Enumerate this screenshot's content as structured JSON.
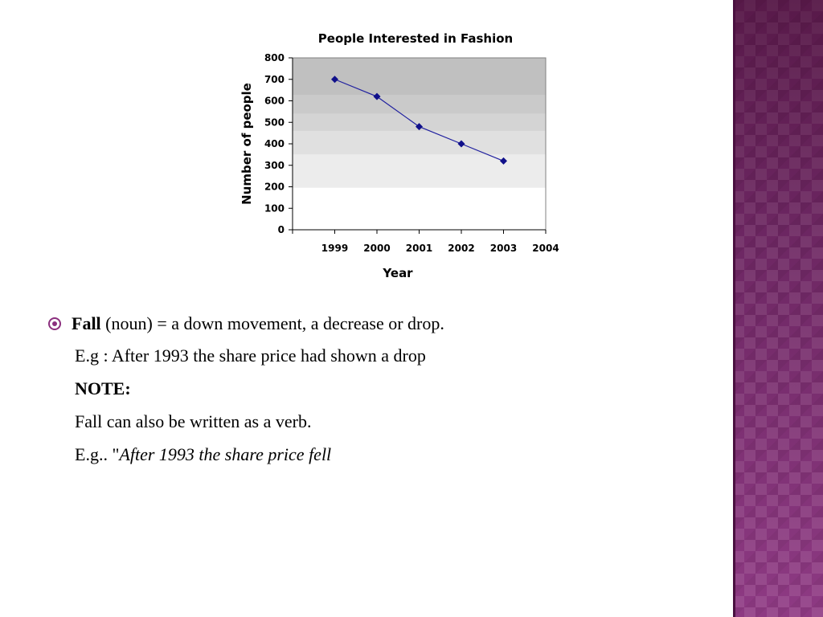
{
  "slide": {
    "bullet": {
      "term": "Fall",
      "definition": " (noun) = a down movement, a decrease or drop."
    },
    "example1": "E.g : After 1993 the share price had shown a drop",
    "note_label": "NOTE:",
    "note_text": "Fall can also be written as a verb.",
    "example2_prefix": "E.g.. \"",
    "example2_italic": "After 1993 the share price fell"
  },
  "colors": {
    "accent": "#8b2f7e",
    "series_line": "#1f1f9f",
    "side_band": "#7a2f72"
  },
  "chart_data": {
    "type": "line",
    "title": "People Interested in Fashion",
    "xlabel": "Year",
    "ylabel": "Number of people",
    "x_ticks": [
      "1999",
      "2000",
      "2001",
      "2002",
      "2003",
      "2004"
    ],
    "y_ticks": [
      "0",
      "100",
      "200",
      "300",
      "400",
      "500",
      "600",
      "700",
      "800"
    ],
    "ylim": [
      0,
      800
    ],
    "series": [
      {
        "x": [
          "1999",
          "2000",
          "2001",
          "2002",
          "2003"
        ],
        "values": [
          700,
          620,
          480,
          400,
          320
        ]
      }
    ],
    "grid": false,
    "legend": "none"
  }
}
